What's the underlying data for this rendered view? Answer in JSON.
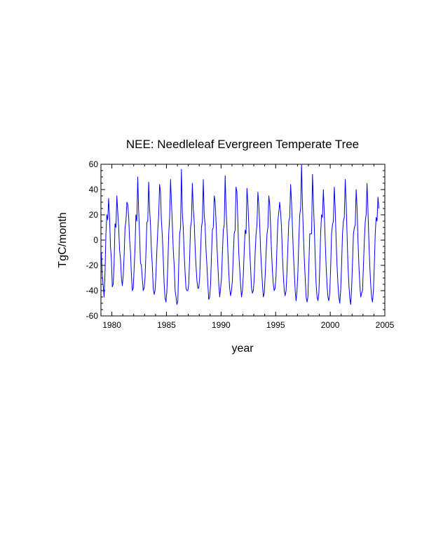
{
  "chart_data": {
    "type": "line",
    "title": "NEE: Needleleaf Evergreen Temperate Tree",
    "xlabel": "year",
    "ylabel": "TgC/month",
    "xlim": [
      1979,
      2005
    ],
    "ylim": [
      -60,
      60
    ],
    "x_ticks": [
      1980,
      1985,
      1990,
      1995,
      2000,
      2005
    ],
    "y_ticks": [
      -60,
      -40,
      -20,
      0,
      20,
      40,
      60
    ],
    "grid": false,
    "line_color": "#0000ff",
    "series": [
      {
        "x_start": 1979.04,
        "x_step": 0.08333,
        "values": [
          -10,
          -28,
          -36,
          -45,
          -26,
          5,
          20,
          16,
          33,
          18,
          -5,
          -15,
          -37,
          -35,
          -18,
          13,
          10,
          35,
          22,
          10,
          -8,
          -15,
          -30,
          -36,
          -28,
          -12,
          10,
          15,
          30,
          28,
          18,
          0,
          -10,
          -28,
          -40,
          -38,
          -22,
          -5,
          20,
          15,
          50,
          23,
          5,
          -18,
          -20,
          -30,
          -40,
          -38,
          -30,
          -10,
          14,
          15,
          46,
          25,
          12,
          -8,
          -20,
          -38,
          -43,
          -40,
          -27,
          -8,
          8,
          20,
          44,
          38,
          15,
          3,
          -15,
          -35,
          -46,
          -49,
          -40,
          -20,
          5,
          18,
          48,
          30,
          12,
          -8,
          -20,
          -40,
          -45,
          -51,
          -48,
          -20,
          5,
          10,
          56,
          22,
          10,
          -10,
          -25,
          -38,
          -40,
          -40,
          -35,
          -15,
          10,
          15,
          45,
          25,
          15,
          -5,
          -20,
          -32,
          -38,
          -38,
          -30,
          -10,
          10,
          15,
          48,
          20,
          12,
          -8,
          -20,
          -35,
          -47,
          -45,
          -35,
          -12,
          8,
          10,
          35,
          30,
          15,
          -5,
          -20,
          -35,
          -45,
          -38,
          -30,
          -10,
          8,
          12,
          51,
          25,
          10,
          -8,
          -25,
          -38,
          -44,
          -40,
          -32,
          -12,
          5,
          8,
          42,
          38,
          15,
          -10,
          -22,
          -35,
          -45,
          -40,
          -28,
          -8,
          8,
          5,
          41,
          30,
          12,
          -8,
          -22,
          -38,
          -42,
          -40,
          -30,
          -10,
          5,
          12,
          38,
          28,
          12,
          -8,
          -22,
          -35,
          -45,
          -42,
          -28,
          -10,
          5,
          10,
          35,
          28,
          10,
          -10,
          -25,
          -35,
          -40,
          -38,
          -28,
          -5,
          15,
          22,
          30,
          22,
          10,
          -12,
          -28,
          -40,
          -44,
          -40,
          -25,
          -5,
          15,
          18,
          44,
          30,
          10,
          -10,
          -25,
          -40,
          -48,
          -40,
          -25,
          0,
          20,
          25,
          60,
          28,
          5,
          -15,
          -30,
          -45,
          -49,
          -45,
          -20,
          5,
          5,
          5,
          52,
          30,
          10,
          -15,
          -35,
          -45,
          -48,
          -42,
          -22,
          5,
          20,
          18,
          40,
          22,
          0,
          -20,
          -35,
          -45,
          -48,
          -42,
          -22,
          5,
          12,
          15,
          42,
          25,
          0,
          -20,
          -35,
          -45,
          -50,
          -40,
          -20,
          5,
          15,
          18,
          48,
          30,
          5,
          -20,
          -35,
          -46,
          -51,
          -38,
          -18,
          5,
          10,
          12,
          40,
          25,
          0,
          -20,
          -35,
          -45,
          -42,
          -40,
          -20,
          0,
          15,
          20,
          45,
          25,
          0,
          -20,
          -35,
          -45,
          -49,
          -40,
          -20,
          5,
          18,
          15,
          34,
          25
        ]
      }
    ]
  }
}
